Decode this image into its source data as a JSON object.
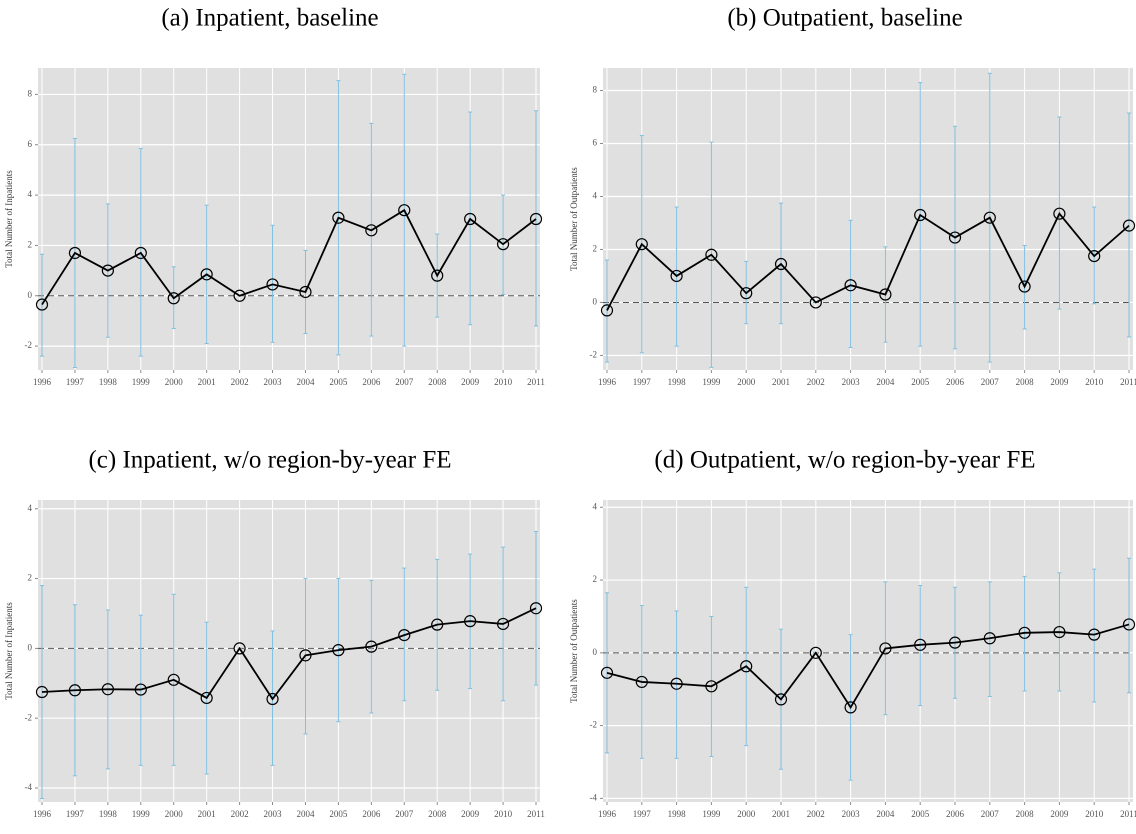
{
  "chart_data": [
    {
      "type": "line",
      "title": "(a) Inpatient, baseline",
      "y_label": "Total Number of Inpatients",
      "categories": [
        "1996",
        "1997",
        "1998",
        "1999",
        "2000",
        "2001",
        "2002",
        "2003",
        "2004",
        "2005",
        "2006",
        "2007",
        "2008",
        "2009",
        "2010",
        "2011"
      ],
      "series": [
        {
          "color": "#000000",
          "error_color": "#7fbfdf",
          "values": [
            -0.35,
            1.7,
            1.0,
            1.7,
            -0.1,
            0.85,
            0.0,
            0.45,
            0.15,
            3.1,
            2.6,
            3.4,
            0.8,
            3.05,
            2.05,
            3.05
          ],
          "lower": [
            -2.4,
            -2.85,
            -1.65,
            -2.4,
            -1.3,
            -1.9,
            0,
            -1.85,
            -1.5,
            -2.35,
            -1.6,
            -2.0,
            -0.85,
            -1.15,
            0.05,
            -1.2
          ],
          "upper": [
            1.65,
            6.25,
            3.65,
            5.85,
            1.15,
            3.6,
            0,
            2.8,
            1.8,
            8.55,
            6.85,
            8.8,
            2.45,
            7.3,
            4.0,
            7.35
          ]
        }
      ],
      "ylim": [
        -2.95,
        9.05
      ],
      "yticks": [
        -2,
        0,
        2,
        4,
        6,
        8
      ],
      "hline": 0,
      "grid": true
    },
    {
      "type": "line",
      "title": "(b) Outpatient, baseline",
      "y_label": "Total Number of Outpatients",
      "categories": [
        "1996",
        "1997",
        "1998",
        "1999",
        "2000",
        "2001",
        "2002",
        "2003",
        "2004",
        "2005",
        "2006",
        "2007",
        "2008",
        "2009",
        "2010",
        "2011"
      ],
      "series": [
        {
          "color": "#000000",
          "error_color": "#7fbfdf",
          "values": [
            -0.3,
            2.2,
            1.0,
            1.8,
            0.35,
            1.45,
            0.0,
            0.65,
            0.3,
            3.3,
            2.45,
            3.2,
            0.6,
            3.35,
            1.75,
            2.9
          ],
          "lower": [
            -2.25,
            -1.9,
            -1.65,
            -2.45,
            -0.8,
            -0.8,
            0,
            -1.7,
            -1.5,
            -1.65,
            -1.75,
            -2.25,
            -1.0,
            -0.25,
            -0.05,
            -1.3
          ],
          "upper": [
            1.6,
            6.3,
            3.6,
            6.05,
            1.55,
            3.75,
            0,
            3.1,
            2.1,
            8.3,
            6.65,
            8.65,
            2.15,
            7.0,
            3.6,
            7.15
          ]
        }
      ],
      "ylim": [
        -2.55,
        8.85
      ],
      "yticks": [
        -2,
        0,
        2,
        4,
        6,
        8
      ],
      "hline": 0,
      "grid": true
    },
    {
      "type": "line",
      "title": "(c) Inpatient, w/o region-by-year FE",
      "y_label": "Total Number of Inpatients",
      "categories": [
        "1996",
        "1997",
        "1998",
        "1999",
        "2000",
        "2001",
        "2002",
        "2003",
        "2004",
        "2005",
        "2006",
        "2007",
        "2008",
        "2009",
        "2010",
        "2011"
      ],
      "series": [
        {
          "color": "#000000",
          "error_color": "#7fbfdf",
          "values": [
            -1.25,
            -1.2,
            -1.17,
            -1.18,
            -0.9,
            -1.42,
            0.0,
            -1.45,
            -0.2,
            -0.05,
            0.05,
            0.38,
            0.68,
            0.78,
            0.7,
            1.15
          ],
          "lower": [
            -4.3,
            -3.65,
            -3.45,
            -3.35,
            -3.35,
            -3.6,
            0,
            -3.35,
            -2.45,
            -2.1,
            -1.85,
            -1.5,
            -1.2,
            -1.15,
            -1.5,
            -1.05
          ],
          "upper": [
            1.8,
            1.25,
            1.1,
            0.95,
            1.55,
            0.75,
            0,
            0.5,
            2.0,
            2.0,
            1.95,
            2.3,
            2.55,
            2.7,
            2.9,
            3.35
          ]
        }
      ],
      "ylim": [
        -4.4,
        4.25
      ],
      "yticks": [
        -4,
        -2,
        0,
        2,
        4
      ],
      "hline": 0,
      "grid": true
    },
    {
      "type": "line",
      "title": "(d) Outpatient, w/o region-by-year FE",
      "y_label": "Total Number of Outpatients",
      "categories": [
        "1996",
        "1997",
        "1998",
        "1999",
        "2000",
        "2001",
        "2002",
        "2003",
        "2004",
        "2005",
        "2006",
        "2007",
        "2008",
        "2009",
        "2010",
        "2011"
      ],
      "series": [
        {
          "color": "#000000",
          "error_color": "#7fbfdf",
          "values": [
            -0.55,
            -0.8,
            -0.85,
            -0.92,
            -0.37,
            -1.28,
            0.0,
            -1.5,
            0.12,
            0.22,
            0.28,
            0.4,
            0.55,
            0.57,
            0.5,
            0.78
          ],
          "lower": [
            -2.75,
            -2.9,
            -2.9,
            -2.85,
            -2.55,
            -3.2,
            0,
            -3.5,
            -1.7,
            -1.45,
            -1.25,
            -1.2,
            -1.05,
            -1.05,
            -1.35,
            -1.1
          ],
          "upper": [
            1.65,
            1.3,
            1.15,
            1.0,
            1.8,
            0.65,
            0,
            0.5,
            1.95,
            1.85,
            1.8,
            1.95,
            2.1,
            2.2,
            2.3,
            2.6
          ]
        }
      ],
      "ylim": [
        -4.1,
        4.2
      ],
      "yticks": [
        -4,
        -2,
        0,
        2,
        4
      ],
      "hline": 0,
      "grid": true
    }
  ]
}
